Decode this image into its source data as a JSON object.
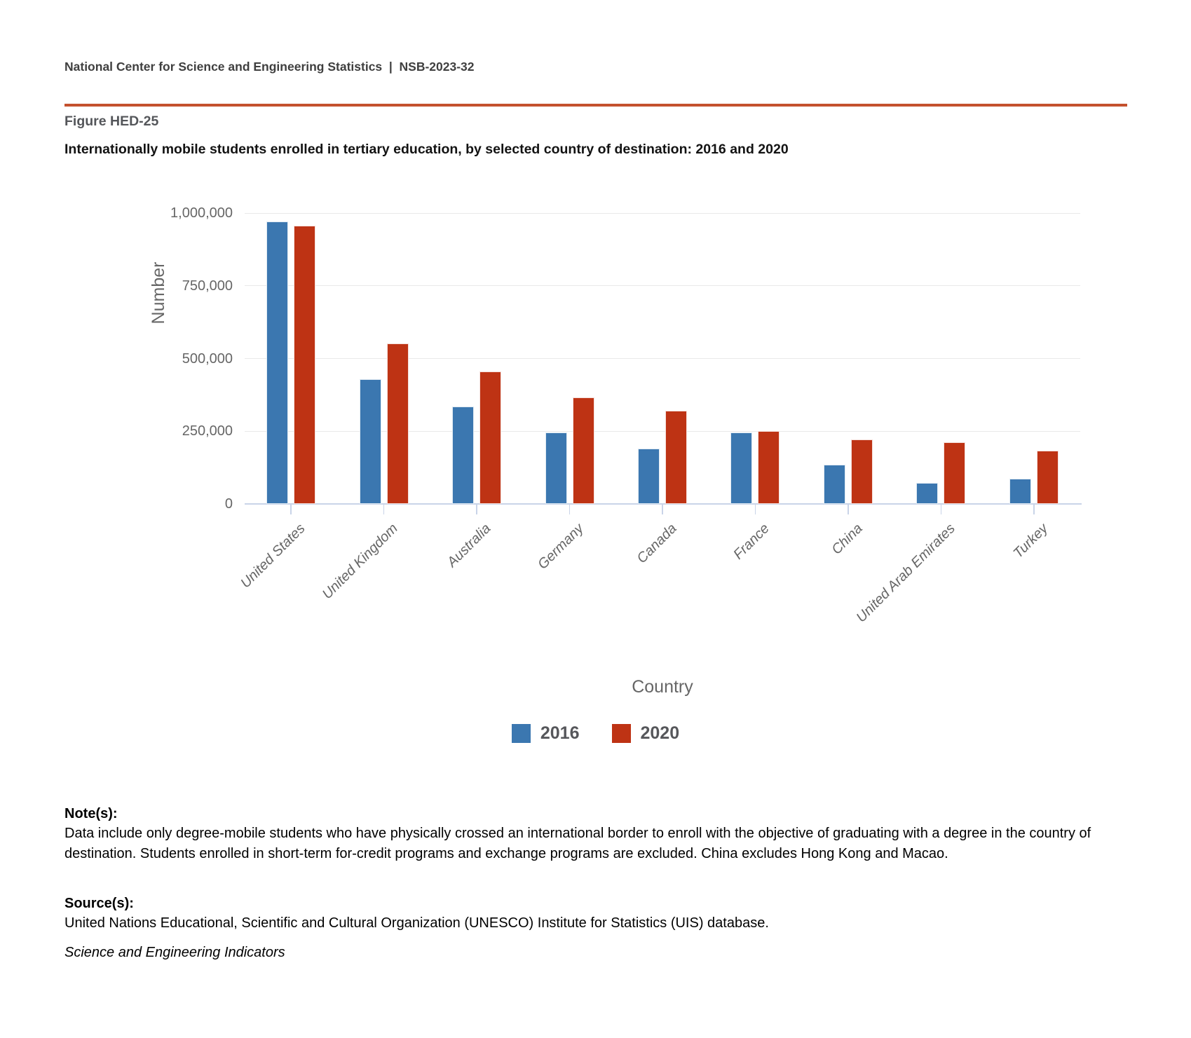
{
  "header": {
    "text": "National Center for Science and Engineering Statistics  |  NSB-2023-32"
  },
  "figure": {
    "label": "Figure HED-25",
    "title": "Internationally mobile students enrolled in tertiary education, by selected country of destination: 2016 and 2020"
  },
  "chart_data": {
    "type": "bar",
    "title": "Internationally mobile students enrolled in tertiary education, by selected country of destination: 2016 and 2020",
    "categories": [
      "United States",
      "United Kingdom",
      "Australia",
      "Germany",
      "Canada",
      "France",
      "China",
      "United Arab Emirates",
      "Turkey"
    ],
    "series": [
      {
        "name": "2016",
        "color": "#3b77b0",
        "values": [
          970000,
          430000,
          335000,
          245000,
          190000,
          245000,
          135000,
          73000,
          86000
        ]
      },
      {
        "name": "2020",
        "color": "#be3314",
        "values": [
          956000,
          551000,
          456000,
          367000,
          320000,
          250000,
          221000,
          212000,
          184000
        ]
      }
    ],
    "xlabel": "Country",
    "ylabel": "Number",
    "ylim": [
      0,
      1000000
    ],
    "yticks": [
      {
        "value": 0,
        "label": "0"
      },
      {
        "value": 250000,
        "label": "250,000"
      },
      {
        "value": 500000,
        "label": "500,000"
      },
      {
        "value": 750000,
        "label": "750,000"
      },
      {
        "value": 1000000,
        "label": "1,000,000"
      }
    ],
    "grid": true,
    "legend_position": "bottom"
  },
  "notes": {
    "heading": "Note(s):",
    "text": "Data include only degree-mobile students who have physically crossed an international border to enroll with the objective of graduating with a degree in the country of destination. Students enrolled in short-term for-credit programs and exchange programs are excluded. China excludes Hong Kong and Macao."
  },
  "sources": {
    "heading": "Source(s):",
    "text": "United Nations Educational, Scientific and Cultural Organization (UNESCO) Institute for Statistics (UIS) database."
  },
  "footer": {
    "text": "Science and Engineering Indicators"
  },
  "colors": {
    "accent_rule": "#c4512e",
    "axis_line": "#c9d4e8",
    "gridline": "#e9e9e9"
  }
}
